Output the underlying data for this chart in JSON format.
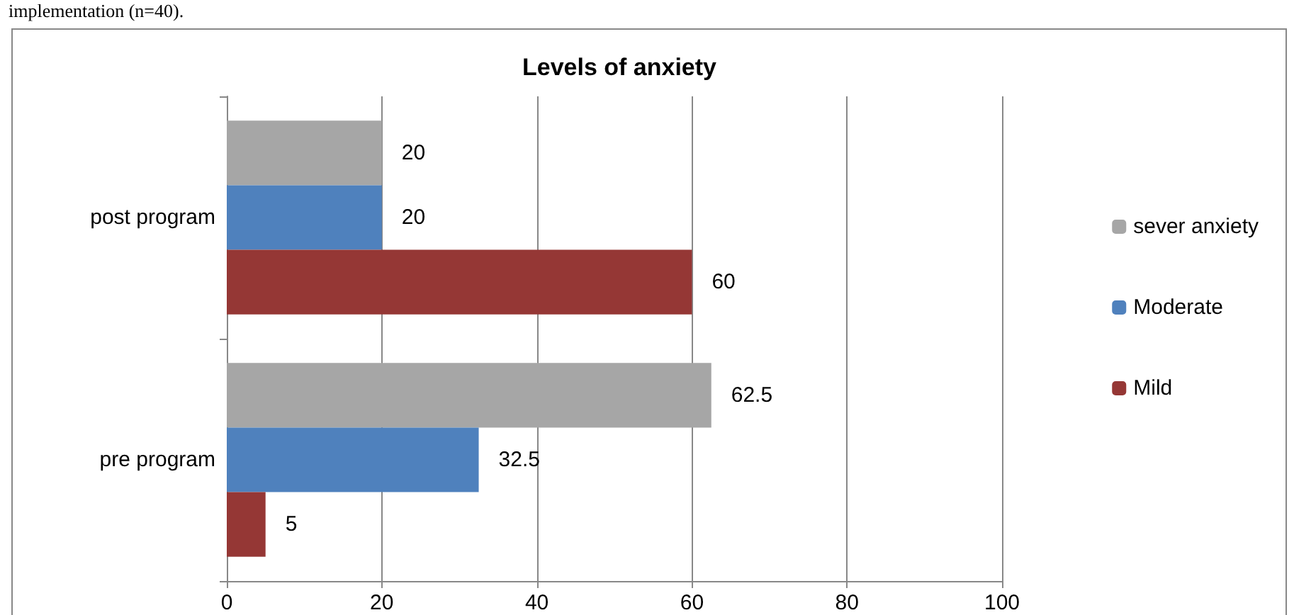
{
  "chart_data": {
    "type": "bar",
    "orientation": "horizontal",
    "title": "Levels of anxiety",
    "annotations": [
      "implementation (n=40)."
    ],
    "categories": [
      "post program",
      "pre program"
    ],
    "series": [
      {
        "name": "sever anxiety",
        "color": "#a6a6a6",
        "values": [
          20,
          62.5
        ]
      },
      {
        "name": "Moderate",
        "color": "#4f81bd",
        "values": [
          20,
          32.5
        ]
      },
      {
        "name": "Mild",
        "color": "#953735",
        "values": [
          60,
          5
        ]
      }
    ],
    "xlim": [
      0,
      100
    ],
    "xticks": [
      0,
      20,
      40,
      60,
      80,
      100
    ],
    "grid": "x",
    "legend": "right",
    "data_labels": true
  }
}
